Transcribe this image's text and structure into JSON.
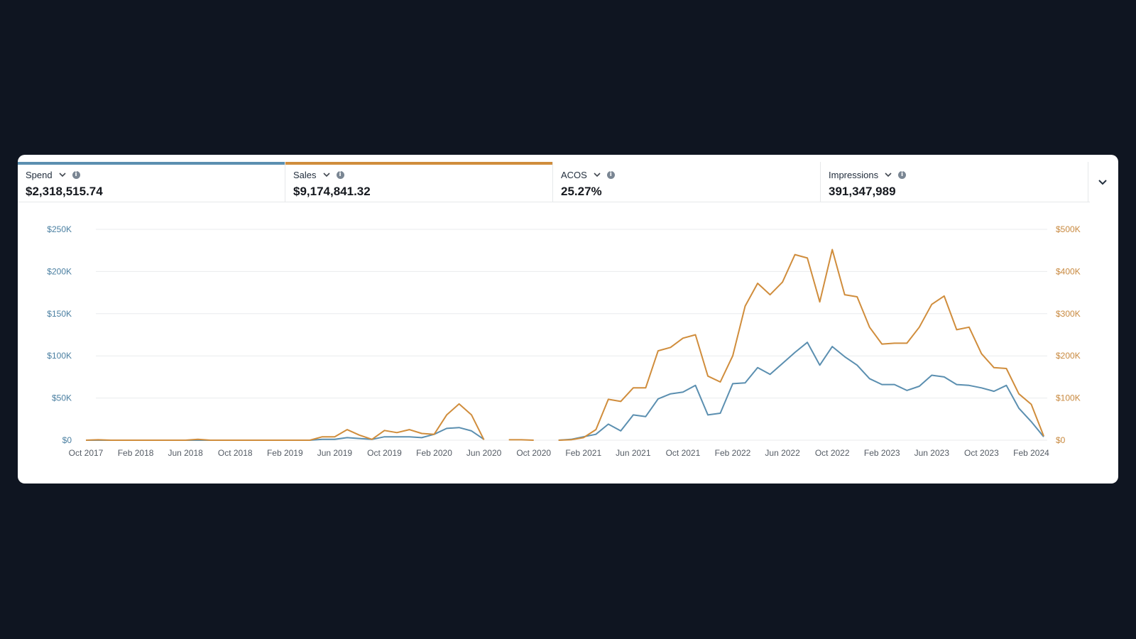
{
  "metrics": [
    {
      "label": "Spend",
      "value": "$2,318,515.74",
      "color": "#5b8fb0"
    },
    {
      "label": "Sales",
      "value": "$9,174,841.32",
      "color": "#d08d3c"
    },
    {
      "label": "ACOS",
      "value": "25.27%",
      "color": ""
    },
    {
      "label": "Impressions",
      "value": "391,347,989",
      "color": ""
    }
  ],
  "chart_data": {
    "type": "line",
    "x_start": "Oct 2017",
    "x_end": "Mar 2024",
    "x_tick_labels": [
      "Oct 2017",
      "Feb 2018",
      "Jun 2018",
      "Oct 2018",
      "Feb 2019",
      "Jun 2019",
      "Oct 2019",
      "Feb 2020",
      "Jun 2020",
      "Oct 2020",
      "Feb 2021",
      "Jun 2021",
      "Oct 2021",
      "Feb 2022",
      "Jun 2022",
      "Oct 2022",
      "Feb 2023",
      "Jun 2023",
      "Oct 2023",
      "Feb 2024"
    ],
    "y_left": {
      "ticks": [
        "$0",
        "$50K",
        "$100K",
        "$150K",
        "$200K",
        "$250K"
      ],
      "range": [
        0,
        250000
      ]
    },
    "y_right": {
      "ticks": [
        "$0",
        "$100K",
        "$200K",
        "$300K",
        "$400K",
        "$500K"
      ],
      "range": [
        0,
        500000
      ]
    },
    "grid": true,
    "series": [
      {
        "name": "Spend",
        "axis": "left",
        "color": "#5b8fb0",
        "values": [
          0,
          0,
          0,
          0,
          0,
          0,
          0,
          0,
          0,
          0,
          0,
          0,
          0,
          0,
          0,
          0,
          0,
          0,
          0,
          1000,
          1000,
          3000,
          2000,
          1000,
          4000,
          4000,
          4000,
          3000,
          7000,
          14000,
          15000,
          11000,
          1000,
          null,
          null,
          null,
          null,
          null,
          0,
          1000,
          4000,
          7000,
          19000,
          11000,
          30000,
          28000,
          49000,
          55000,
          57000,
          65000,
          30000,
          32000,
          67000,
          68000,
          86000,
          78000,
          91000,
          104000,
          116000,
          89000,
          111000,
          99000,
          89000,
          73000,
          66000,
          66000,
          59000,
          64000,
          77000,
          75000,
          66000,
          65000,
          62000,
          58000,
          65000,
          38000,
          22000,
          4000
        ]
      },
      {
        "name": "Sales",
        "axis": "right",
        "color": "#d08d3c",
        "values": [
          0,
          1000,
          0,
          0,
          0,
          0,
          0,
          0,
          0,
          2000,
          0,
          0,
          0,
          0,
          0,
          0,
          0,
          0,
          0,
          8000,
          8000,
          25000,
          12000,
          2000,
          23000,
          18000,
          25000,
          16000,
          14000,
          60000,
          86000,
          60000,
          1000,
          null,
          1000,
          1000,
          0,
          null,
          0,
          1000,
          6000,
          25000,
          97000,
          92000,
          124000,
          124000,
          212000,
          220000,
          242000,
          250000,
          152000,
          138000,
          200000,
          318000,
          372000,
          345000,
          375000,
          440000,
          432000,
          328000,
          452000,
          345000,
          340000,
          268000,
          228000,
          230000,
          230000,
          268000,
          322000,
          342000,
          262000,
          268000,
          205000,
          172000,
          170000,
          110000,
          85000,
          10000
        ]
      }
    ]
  }
}
